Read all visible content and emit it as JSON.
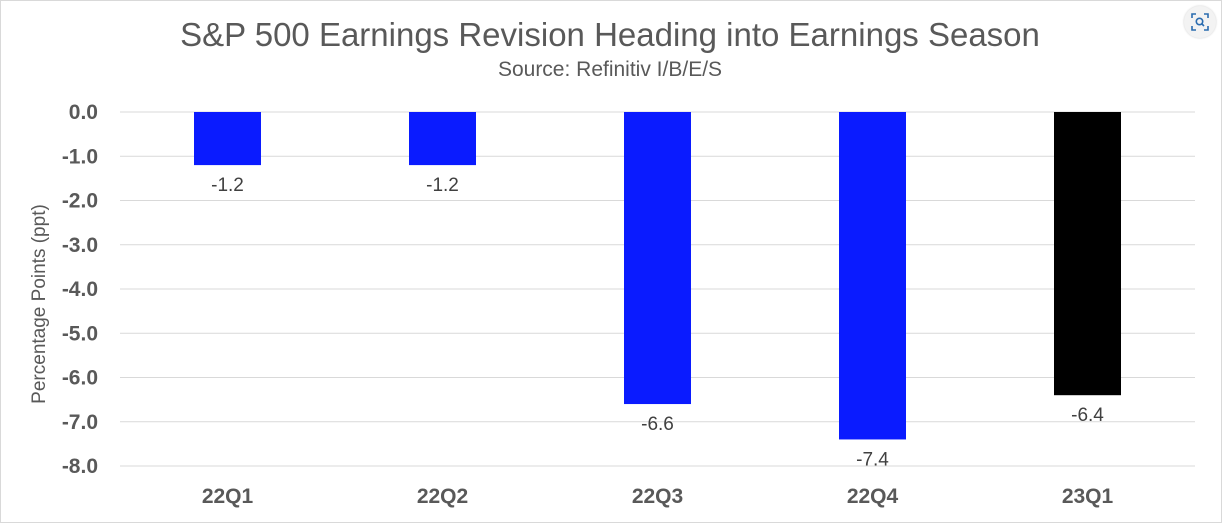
{
  "chart_data": {
    "type": "bar",
    "title": "S&P 500 Earnings Revision Heading into Earnings Season",
    "subtitle": "Source: Refinitiv I/B/E/S",
    "ylabel": "Percentage Points (ppt)",
    "xlabel": "",
    "categories": [
      "22Q1",
      "22Q2",
      "22Q3",
      "22Q4",
      "23Q1"
    ],
    "values": [
      -1.2,
      -1.2,
      -6.6,
      -7.4,
      -6.4
    ],
    "data_labels": [
      "-1.2",
      "-1.2",
      "-6.6",
      "-7.4",
      "-6.4"
    ],
    "bar_colors": [
      "#0a1bff",
      "#0a1bff",
      "#0a1bff",
      "#0a1bff",
      "#000000"
    ],
    "ylim": [
      -8.0,
      0.0
    ],
    "yticks": [
      "0.0",
      "-1.0",
      "-2.0",
      "-3.0",
      "-4.0",
      "-5.0",
      "-6.0",
      "-7.0",
      "-8.0"
    ],
    "grid": true,
    "legend": "none"
  },
  "icons": {
    "expand": "zoom-lens-icon"
  }
}
